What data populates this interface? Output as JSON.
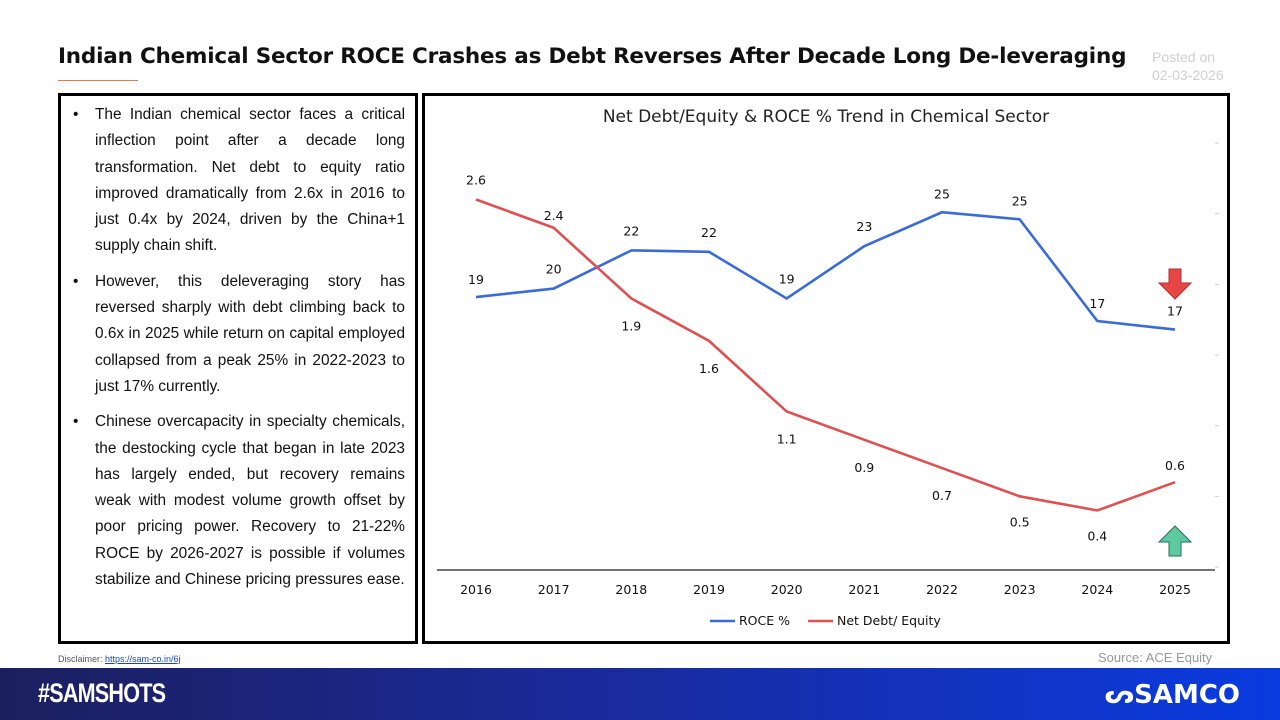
{
  "header": {
    "title": "Indian Chemical Sector ROCE Crashes as Debt Reverses After Decade Long De-leveraging",
    "posted_label": "Posted on",
    "posted_date": "02-03-2026"
  },
  "bullets": [
    "The Indian chemical sector faces a critical inflection point after a decade long transformation. Net debt to equity ratio improved dramatically from 2.6x in 2016 to just 0.4x by 2024, driven by the China+1 supply chain shift.",
    "However, this deleveraging story has reversed sharply with debt climbing back to 0.6x in 2025 while return on capital employed collapsed from a peak 25% in 2022-2023 to just 17% currently.",
    "Chinese overcapacity in specialty chemicals, the destocking cycle that began in late 2023 has largely ended, but recovery remains weak with modest volume growth offset by poor pricing power. Recovery to 21-22% ROCE by 2026-2027 is possible if volumes stabilize and Chinese pricing pressures ease."
  ],
  "footer": {
    "disclaimer_label": "Disclaimer:",
    "disclaimer_link": "https://sam-co.in/6j",
    "source": "Source: ACE Equity",
    "hashtag": "#SAMSHOTS",
    "brand": "SAMCO"
  },
  "chart_data": {
    "type": "line",
    "title": "Net Debt/Equity & ROCE % Trend in Chemical Sector",
    "categories": [
      "2016",
      "2017",
      "2018",
      "2019",
      "2020",
      "2021",
      "2022",
      "2023",
      "2024",
      "2025"
    ],
    "series": [
      {
        "name": "ROCE %",
        "color": "#3a6bd6",
        "axis": "left",
        "ylim": [
          0,
          30
        ],
        "values": [
          19.1,
          19.7,
          22.4,
          22.3,
          19.0,
          22.7,
          25.1,
          24.6,
          17.4,
          16.8
        ],
        "labels": [
          "19",
          "20",
          "22",
          "22",
          "19",
          "23",
          "25",
          "25",
          "17",
          "17"
        ]
      },
      {
        "name": "Net Debt/ Equity",
        "color": "#e05050",
        "axis": "right",
        "ylim": [
          0,
          3
        ],
        "values": [
          2.6,
          2.4,
          1.9,
          1.6,
          1.1,
          0.9,
          0.7,
          0.5,
          0.4,
          0.6
        ],
        "labels": [
          "2.6",
          "2.4",
          "1.9",
          "1.6",
          "1.1",
          "0.9",
          "0.7",
          "0.5",
          "0.4",
          "0.6"
        ]
      }
    ],
    "grid": false,
    "legend": "bottom",
    "annotations": [
      {
        "type": "down-arrow",
        "color": "#e84545",
        "near": "ROCE 2025"
      },
      {
        "type": "up-arrow",
        "color": "#5cc9a0",
        "near": "Net Debt/ Equity 2025"
      }
    ]
  }
}
